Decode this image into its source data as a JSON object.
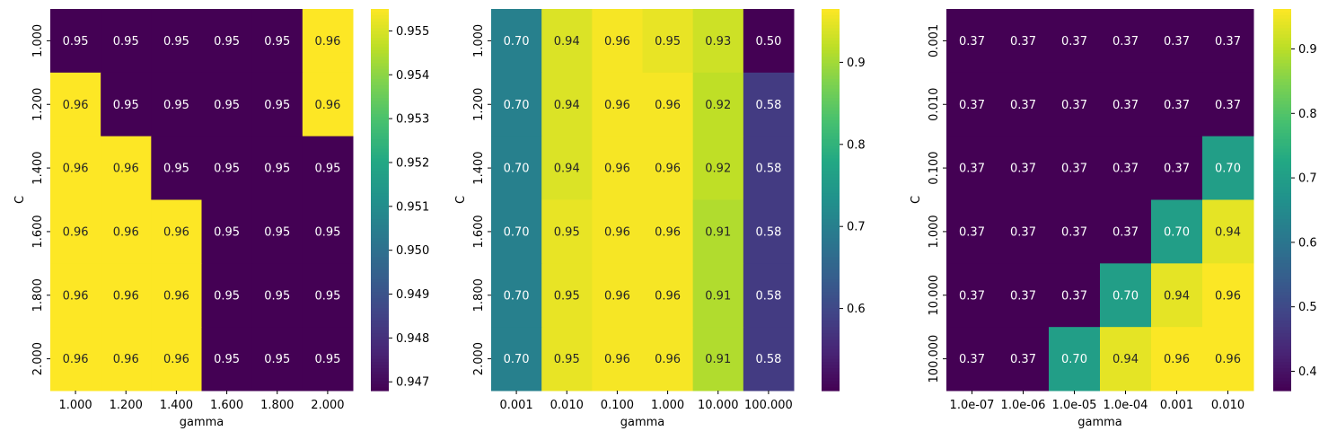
{
  "chart_data": [
    {
      "type": "heatmap",
      "xlabel": "gamma",
      "ylabel": "C",
      "x_ticks": [
        "1.000",
        "1.200",
        "1.400",
        "1.600",
        "1.800",
        "2.000"
      ],
      "y_ticks": [
        "1.000",
        "1.200",
        "1.400",
        "1.600",
        "1.800",
        "2.000"
      ],
      "values": [
        [
          0.9468,
          0.9468,
          0.9468,
          0.9468,
          0.9468,
          0.9555
        ],
        [
          0.9555,
          0.9468,
          0.9468,
          0.9468,
          0.9468,
          0.9555
        ],
        [
          0.9555,
          0.9555,
          0.9468,
          0.9468,
          0.9468,
          0.9468
        ],
        [
          0.9555,
          0.9555,
          0.9555,
          0.9468,
          0.9468,
          0.9468
        ],
        [
          0.9555,
          0.9555,
          0.9555,
          0.9468,
          0.9468,
          0.9468
        ],
        [
          0.9555,
          0.9555,
          0.9555,
          0.9468,
          0.9468,
          0.9468
        ]
      ],
      "annotations": [
        [
          "0.95",
          "0.95",
          "0.95",
          "0.95",
          "0.95",
          "0.96"
        ],
        [
          "0.96",
          "0.95",
          "0.95",
          "0.95",
          "0.95",
          "0.96"
        ],
        [
          "0.96",
          "0.96",
          "0.95",
          "0.95",
          "0.95",
          "0.95"
        ],
        [
          "0.96",
          "0.96",
          "0.96",
          "0.95",
          "0.95",
          "0.95"
        ],
        [
          "0.96",
          "0.96",
          "0.96",
          "0.95",
          "0.95",
          "0.95"
        ],
        [
          "0.96",
          "0.96",
          "0.96",
          "0.95",
          "0.95",
          "0.95"
        ]
      ],
      "colorbar": {
        "colormap": "viridis",
        "range": [
          0.9468,
          0.9555
        ],
        "ticks": [
          0.947,
          0.948,
          0.949,
          0.95,
          0.951,
          0.952,
          0.953,
          0.954,
          0.955
        ],
        "tick_labels": [
          "0.947",
          "0.948",
          "0.949",
          "0.950",
          "0.951",
          "0.952",
          "0.953",
          "0.954",
          "0.955"
        ]
      }
    },
    {
      "type": "heatmap",
      "xlabel": "gamma",
      "ylabel": "C",
      "x_ticks": [
        "0.001",
        "0.010",
        "0.100",
        "1.000",
        "10.000",
        "100.000"
      ],
      "y_ticks": [
        "1.000",
        "1.200",
        "1.400",
        "1.600",
        "1.800",
        "2.000"
      ],
      "values": [
        [
          0.7,
          0.94,
          0.96,
          0.95,
          0.93,
          0.5
        ],
        [
          0.7,
          0.94,
          0.96,
          0.96,
          0.92,
          0.58
        ],
        [
          0.7,
          0.94,
          0.96,
          0.96,
          0.92,
          0.58
        ],
        [
          0.7,
          0.95,
          0.96,
          0.96,
          0.91,
          0.58
        ],
        [
          0.7,
          0.95,
          0.96,
          0.96,
          0.91,
          0.58
        ],
        [
          0.7,
          0.95,
          0.96,
          0.96,
          0.91,
          0.58
        ]
      ],
      "annotations": [
        [
          "0.70",
          "0.94",
          "0.96",
          "0.95",
          "0.93",
          "0.50"
        ],
        [
          "0.70",
          "0.94",
          "0.96",
          "0.96",
          "0.92",
          "0.58"
        ],
        [
          "0.70",
          "0.94",
          "0.96",
          "0.96",
          "0.92",
          "0.58"
        ],
        [
          "0.70",
          "0.95",
          "0.96",
          "0.96",
          "0.91",
          "0.58"
        ],
        [
          "0.70",
          "0.95",
          "0.96",
          "0.96",
          "0.91",
          "0.58"
        ],
        [
          "0.70",
          "0.95",
          "0.96",
          "0.96",
          "0.91",
          "0.58"
        ]
      ],
      "colorbar": {
        "colormap": "viridis",
        "range": [
          0.5,
          0.965
        ],
        "ticks": [
          0.6,
          0.7,
          0.8,
          0.9
        ],
        "tick_labels": [
          "0.6",
          "0.7",
          "0.8",
          "0.9"
        ]
      }
    },
    {
      "type": "heatmap",
      "xlabel": "gamma",
      "ylabel": "C",
      "x_ticks": [
        "1.0e-07",
        "1.0e-06",
        "1.0e-05",
        "1.0e-04",
        "0.001",
        "0.010"
      ],
      "y_ticks": [
        "0.001",
        "0.010",
        "0.100",
        "1.000",
        "10.000",
        "100.000"
      ],
      "values": [
        [
          0.37,
          0.37,
          0.37,
          0.37,
          0.37,
          0.37
        ],
        [
          0.37,
          0.37,
          0.37,
          0.37,
          0.37,
          0.37
        ],
        [
          0.37,
          0.37,
          0.37,
          0.37,
          0.37,
          0.7
        ],
        [
          0.37,
          0.37,
          0.37,
          0.37,
          0.7,
          0.94
        ],
        [
          0.37,
          0.37,
          0.37,
          0.7,
          0.94,
          0.96
        ],
        [
          0.37,
          0.37,
          0.7,
          0.94,
          0.96,
          0.96
        ]
      ],
      "annotations": [
        [
          "0.37",
          "0.37",
          "0.37",
          "0.37",
          "0.37",
          "0.37"
        ],
        [
          "0.37",
          "0.37",
          "0.37",
          "0.37",
          "0.37",
          "0.37"
        ],
        [
          "0.37",
          "0.37",
          "0.37",
          "0.37",
          "0.37",
          "0.70"
        ],
        [
          "0.37",
          "0.37",
          "0.37",
          "0.37",
          "0.70",
          "0.94"
        ],
        [
          "0.37",
          "0.37",
          "0.37",
          "0.70",
          "0.94",
          "0.96"
        ],
        [
          "0.37",
          "0.37",
          "0.70",
          "0.94",
          "0.96",
          "0.96"
        ]
      ],
      "colorbar": {
        "colormap": "viridis",
        "range": [
          0.37,
          0.962
        ],
        "ticks": [
          0.4,
          0.5,
          0.6,
          0.7,
          0.8,
          0.9
        ],
        "tick_labels": [
          "0.4",
          "0.5",
          "0.6",
          "0.7",
          "0.8",
          "0.9"
        ]
      }
    }
  ]
}
